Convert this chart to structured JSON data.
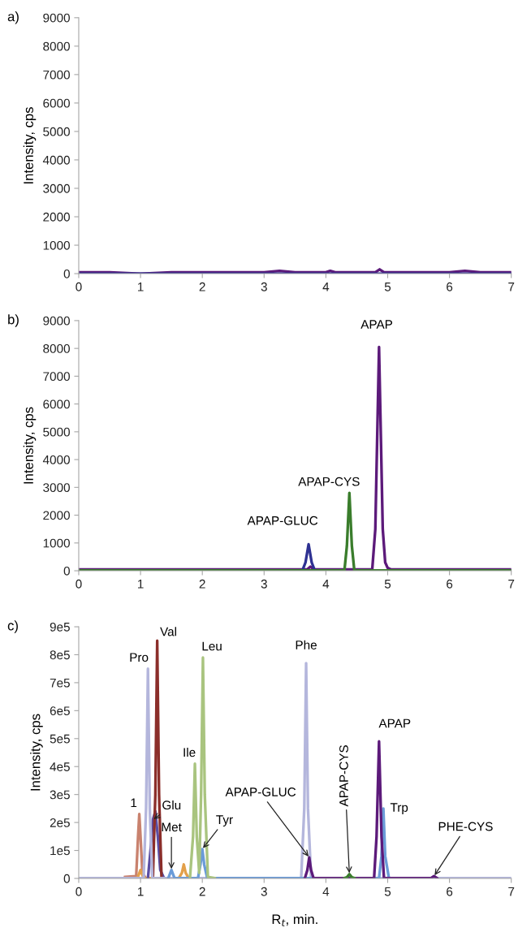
{
  "chart_data": [
    {
      "type": "line",
      "title": "a)",
      "ylabel": "Intensity, cps",
      "xlim": [
        0,
        7
      ],
      "xticks": [
        0,
        1,
        2,
        3,
        4,
        5,
        6,
        7
      ],
      "ylim": [
        0,
        9000
      ],
      "yticks": [
        0,
        1000,
        2000,
        3000,
        4000,
        5000,
        6000,
        7000,
        8000,
        9000
      ],
      "grid": false,
      "legend": false,
      "series": [
        {
          "color": "#5c1a7a",
          "x": [
            0,
            0.25,
            0.5,
            1,
            1.5,
            2,
            2.2,
            2.5,
            3,
            3.25,
            3.5,
            4,
            4.07,
            4.15,
            4.5,
            4.8,
            4.87,
            4.94,
            5.5,
            6,
            6.25,
            6.5,
            7
          ],
          "values": [
            50,
            50,
            50,
            0,
            50,
            50,
            50,
            50,
            50,
            100,
            50,
            50,
            100,
            50,
            50,
            50,
            150,
            50,
            50,
            50,
            100,
            50,
            50
          ]
        },
        {
          "color": "#2e3192",
          "x": [
            0,
            7
          ],
          "values": [
            0,
            0
          ]
        }
      ]
    },
    {
      "type": "line",
      "title": "b)",
      "ylabel": "Intensity, cps",
      "xlim": [
        0,
        7
      ],
      "xticks": [
        0,
        1,
        2,
        3,
        4,
        5,
        6,
        7
      ],
      "ylim": [
        0,
        9000
      ],
      "yticks": [
        0,
        1000,
        2000,
        3000,
        4000,
        5000,
        6000,
        7000,
        8000,
        9000
      ],
      "grid": false,
      "legend": false,
      "series": [
        {
          "color": "#5c1a7a",
          "x": [
            0,
            0.5,
            1,
            1.5,
            2,
            2.5,
            3,
            3.5,
            3.7,
            3.75,
            3.8,
            4,
            4.5,
            4.75,
            4.8,
            4.86,
            4.92,
            4.96,
            5.0,
            5.05,
            5.5,
            6,
            6.5,
            7
          ],
          "values": [
            50,
            50,
            50,
            50,
            50,
            50,
            50,
            50,
            50,
            150,
            50,
            50,
            50,
            50,
            1500,
            8050,
            1500,
            300,
            100,
            50,
            50,
            50,
            50,
            50
          ]
        },
        {
          "color": "#2e3192",
          "x": [
            3.62,
            3.67,
            3.72,
            3.77,
            3.82
          ],
          "values": [
            10,
            300,
            950,
            300,
            10
          ]
        },
        {
          "color": "#3a7d2c",
          "x": [
            0,
            4.3,
            4.34,
            4.38,
            4.42,
            4.46,
            7
          ],
          "values": [
            10,
            10,
            900,
            2800,
            900,
            10,
            10
          ]
        }
      ],
      "annotations": [
        {
          "text": "APAP-GLUC",
          "x": 3.72,
          "y": 950
        },
        {
          "text": "APAP-CYS",
          "x": 4.38,
          "y": 2800
        },
        {
          "text": "APAP",
          "x": 4.86,
          "y": 8050
        }
      ]
    },
    {
      "type": "line",
      "title": "c)",
      "xlabel": "R$_{t}$, min.",
      "ylabel": "Intensity, cps",
      "xlim": [
        0,
        7
      ],
      "xticks": [
        0,
        1,
        2,
        3,
        4,
        5,
        6,
        7
      ],
      "ylim": [
        0,
        900000
      ],
      "yticks": [
        0,
        {
          "value": 100000,
          "label": "1e5"
        },
        {
          "value": 200000,
          "label": "2e5"
        },
        {
          "value": 300000,
          "label": "3e5"
        },
        {
          "value": 400000,
          "label": "4e5"
        },
        {
          "value": 500000,
          "label": "5e5"
        },
        {
          "value": 600000,
          "label": "6e5"
        },
        {
          "value": 700000,
          "label": "7e5"
        },
        {
          "value": 800000,
          "label": "8e5"
        },
        {
          "value": 900000,
          "label": "9e5"
        }
      ],
      "grid": false,
      "legend": false,
      "series": [
        {
          "color": "#c9826e",
          "x": [
            0.75,
            0.93,
            0.96,
            0.98,
            1.0,
            1.03,
            1.08
          ],
          "values": [
            5000,
            8000,
            150000,
            230000,
            150000,
            20000,
            2000
          ]
        },
        {
          "color": "#e3a04a",
          "x": [
            0.95,
            1.0,
            1.05,
            1.62,
            1.67,
            1.7,
            1.73,
            1.78
          ],
          "values": [
            1000,
            30000,
            1000,
            1000,
            20000,
            50000,
            20000,
            1000
          ]
        },
        {
          "color": "#5b4ea3",
          "x": [
            1.12,
            1.17,
            1.2,
            1.24,
            1.28,
            1.32,
            1.38
          ],
          "values": [
            1000,
            120000,
            210000,
            240000,
            150000,
            30000,
            1000
          ]
        },
        {
          "color": "#8b2e2a",
          "x": [
            1.2,
            1.24,
            1.27,
            1.3,
            1.34
          ],
          "values": [
            1000,
            300000,
            850000,
            300000,
            1000
          ]
        },
        {
          "color": "#b4b6dc",
          "x": [
            0,
            1.05,
            1.09,
            1.12,
            1.15,
            1.19,
            3.6,
            3.65,
            3.68,
            3.71,
            3.76,
            7
          ],
          "values": [
            1000,
            1000,
            250000,
            750000,
            250000,
            1000,
            1000,
            250000,
            770000,
            250000,
            1000,
            1000
          ]
        },
        {
          "color": "#6a9bd8",
          "x": [
            1.45,
            1.5,
            1.55,
            1.93,
            1.97,
            2.0,
            2.03,
            2.08,
            4.86,
            4.9,
            4.93,
            4.96,
            5.02
          ],
          "values": [
            1000,
            30000,
            1000,
            1000,
            50000,
            105000,
            50000,
            1000,
            1000,
            80000,
            250000,
            80000,
            1000
          ]
        },
        {
          "color": "#a9c47f",
          "x": [
            1.8,
            1.85,
            1.88,
            1.91,
            1.95,
            1.98,
            2.01,
            2.04,
            2.09,
            2.2
          ],
          "values": [
            1000,
            150000,
            410000,
            150000,
            20000,
            300000,
            790000,
            300000,
            5000,
            1000
          ]
        },
        {
          "color": "#5c1a7a",
          "x": [
            3.66,
            3.7,
            3.73,
            3.76,
            3.8,
            4.78,
            4.82,
            4.86,
            4.9,
            4.94,
            5.7,
            5.75,
            5.8
          ],
          "values": [
            1000,
            30000,
            75000,
            30000,
            1000,
            1000,
            150000,
            490000,
            150000,
            1000,
            1000,
            8000,
            1000
          ]
        },
        {
          "color": "#3a7d2c",
          "x": [
            4.3,
            4.34,
            4.38,
            4.42,
            4.46
          ],
          "values": [
            1000,
            4000,
            15000,
            4000,
            1000
          ]
        }
      ],
      "annotations": [
        {
          "text": "1",
          "x": 0.98,
          "y": 230000
        },
        {
          "text": "Pro",
          "x": 1.12,
          "y": 750000
        },
        {
          "text": "Val",
          "x": 1.27,
          "y": 850000
        },
        {
          "text": "Glu",
          "x": 1.2,
          "y": 210000
        },
        {
          "text": "Met",
          "x": 1.5,
          "y": 30000
        },
        {
          "text": "Ile",
          "x": 1.88,
          "y": 410000
        },
        {
          "text": "Leu",
          "x": 2.01,
          "y": 790000
        },
        {
          "text": "Tyr",
          "x": 2.0,
          "y": 105000
        },
        {
          "text": "Phe",
          "x": 3.68,
          "y": 770000
        },
        {
          "text": "APAP-GLUC",
          "x": 3.73,
          "y": 75000
        },
        {
          "text": "APAP-CYS",
          "x": 4.38,
          "y": 15000
        },
        {
          "text": "APAP",
          "x": 4.86,
          "y": 490000
        },
        {
          "text": "Trp",
          "x": 4.93,
          "y": 250000
        },
        {
          "text": "PHE-CYS",
          "x": 5.75,
          "y": 8000
        }
      ]
    }
  ]
}
